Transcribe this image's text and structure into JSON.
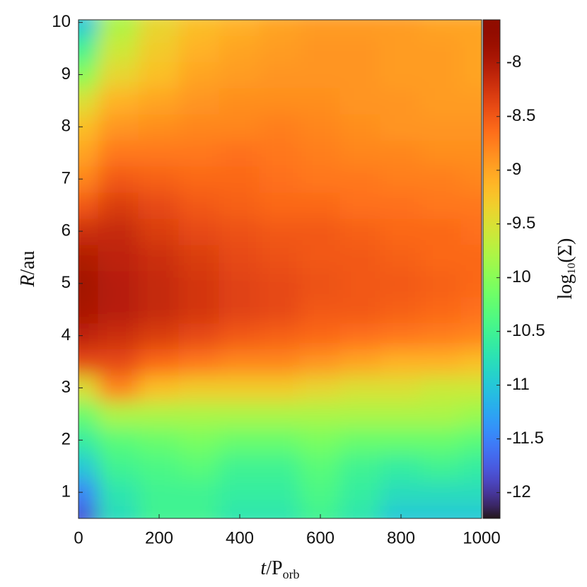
{
  "chart_data": {
    "type": "heatmap",
    "x_label": {
      "main": "t",
      "mid": "/P",
      "sub": "orb"
    },
    "y_label": {
      "main": "R",
      "after": "/au"
    },
    "colorbar_label": {
      "main": "log",
      "sub": "10",
      "after": "(Σ)"
    },
    "colormap": "turbo",
    "xlim": [
      0,
      1000
    ],
    "xticks": [
      0,
      200,
      400,
      600,
      800,
      1000
    ],
    "ylim": [
      0.5,
      10.05
    ],
    "yticks": [
      1,
      2,
      3,
      4,
      5,
      6,
      7,
      8,
      9,
      10
    ],
    "clim": [
      -12.24,
      -7.6
    ],
    "cticks": [
      -8,
      -8.5,
      -9,
      -9.5,
      -10,
      -10.5,
      -11,
      -11.5,
      -12
    ],
    "x": [
      0,
      100,
      200,
      300,
      400,
      500,
      600,
      700,
      800,
      900,
      1000
    ],
    "y": [
      0.5,
      1,
      1.5,
      2,
      2.5,
      3,
      3.5,
      4,
      4.5,
      5,
      5.5,
      6,
      6.5,
      7,
      7.5,
      8,
      8.5,
      9,
      9.5,
      10
    ],
    "z": [
      [
        -11.8,
        -10.8,
        -10.5,
        -10.5,
        -10.7,
        -10.7,
        -10.5,
        -10.7,
        -11,
        -11,
        -11
      ],
      [
        -11.5,
        -10.7,
        -10.5,
        -10.5,
        -10.6,
        -10.6,
        -10.4,
        -10.6,
        -10.8,
        -10.8,
        -10.8
      ],
      [
        -11,
        -10.5,
        -10.4,
        -10.3,
        -10.5,
        -10.5,
        -10.3,
        -10.5,
        -10.6,
        -10.5,
        -10.6
      ],
      [
        -10.6,
        -10.3,
        -10.2,
        -10.1,
        -10.2,
        -10.2,
        -10.1,
        -10.2,
        -10.2,
        -10.2,
        -10.3
      ],
      [
        -10.2,
        -9.8,
        -9.8,
        -9.8,
        -9.8,
        -9.8,
        -9.8,
        -9.8,
        -9.8,
        -9.8,
        -9.9
      ],
      [
        -9.5,
        -8.8,
        -9.2,
        -9.3,
        -9.3,
        -9.3,
        -9.4,
        -9.5,
        -9.5,
        -9.6,
        -9.6
      ],
      [
        -8.4,
        -8.4,
        -8.6,
        -8.7,
        -8.8,
        -8.8,
        -8.9,
        -9,
        -9.1,
        -9.1,
        -9.2
      ],
      [
        -8.1,
        -8.2,
        -8.3,
        -8.4,
        -8.5,
        -8.55,
        -8.6,
        -8.65,
        -8.7,
        -8.75,
        -8.8
      ],
      [
        -7.95,
        -8.05,
        -8.15,
        -8.25,
        -8.35,
        -8.4,
        -8.5,
        -8.5,
        -8.55,
        -8.6,
        -8.65
      ],
      [
        -7.9,
        -8.05,
        -8.15,
        -8.25,
        -8.35,
        -8.4,
        -8.45,
        -8.5,
        -8.5,
        -8.55,
        -8.6
      ],
      [
        -8,
        -8.1,
        -8.2,
        -8.3,
        -8.4,
        -8.45,
        -8.5,
        -8.5,
        -8.55,
        -8.6,
        -8.6
      ],
      [
        -8.2,
        -8.15,
        -8.3,
        -8.4,
        -8.45,
        -8.5,
        -8.5,
        -8.55,
        -8.6,
        -8.6,
        -8.65
      ],
      [
        -8.5,
        -8.3,
        -8.4,
        -8.5,
        -8.55,
        -8.6,
        -8.6,
        -8.65,
        -8.65,
        -8.7,
        -8.7
      ],
      [
        -8.8,
        -8.5,
        -8.55,
        -8.6,
        -8.6,
        -8.65,
        -8.7,
        -8.7,
        -8.75,
        -8.75,
        -8.8
      ],
      [
        -9,
        -8.7,
        -8.7,
        -8.7,
        -8.65,
        -8.7,
        -8.75,
        -8.8,
        -8.8,
        -8.85,
        -8.85
      ],
      [
        -9.2,
        -8.9,
        -8.85,
        -8.8,
        -8.8,
        -8.75,
        -8.8,
        -8.85,
        -8.9,
        -8.9,
        -8.9
      ],
      [
        -9.5,
        -9.1,
        -9,
        -8.9,
        -8.85,
        -8.85,
        -8.85,
        -8.9,
        -8.9,
        -8.95,
        -8.95
      ],
      [
        -10,
        -9.4,
        -9.2,
        -9,
        -8.95,
        -8.9,
        -8.9,
        -8.9,
        -8.95,
        -8.95,
        -9
      ],
      [
        -10.5,
        -9.6,
        -9.3,
        -9.1,
        -9,
        -8.95,
        -8.9,
        -8.9,
        -8.95,
        -8.95,
        -9
      ],
      [
        -11,
        -9.8,
        -9.4,
        -9.2,
        -9.1,
        -9,
        -8.95,
        -8.95,
        -8.95,
        -9,
        -9
      ]
    ]
  }
}
